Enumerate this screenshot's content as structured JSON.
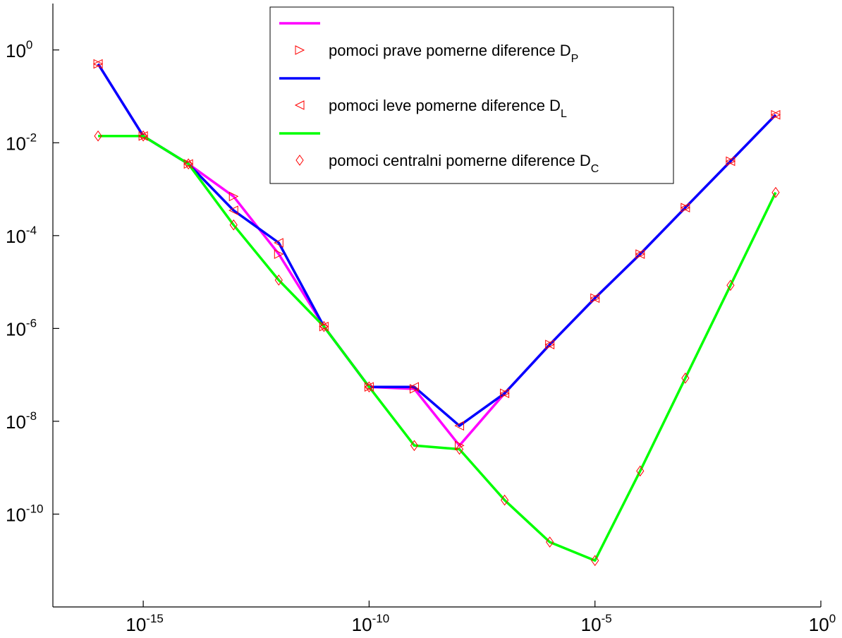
{
  "chart_data": {
    "type": "line",
    "x_scale": "log",
    "y_scale": "log",
    "xlim": [
      1e-17,
      1
    ],
    "ylim": [
      1e-12,
      10
    ],
    "grid": false,
    "legend_placement": "top-center",
    "x_ticks": [
      {
        "value": 1e-15,
        "base": "10",
        "exp": "-15"
      },
      {
        "value": 1e-10,
        "base": "10",
        "exp": "-10"
      },
      {
        "value": 1e-05,
        "base": "10",
        "exp": "-5"
      },
      {
        "value": 1,
        "base": "10",
        "exp": "0"
      }
    ],
    "y_ticks": [
      {
        "value": 1,
        "base": "10",
        "exp": "0"
      },
      {
        "value": 0.01,
        "base": "10",
        "exp": "-2"
      },
      {
        "value": 0.0001,
        "base": "10",
        "exp": "-4"
      },
      {
        "value": 1e-06,
        "base": "10",
        "exp": "-6"
      },
      {
        "value": 1e-08,
        "base": "10",
        "exp": "-8"
      },
      {
        "value": 1e-10,
        "base": "10",
        "exp": "-10"
      }
    ],
    "x": [
      1e-16,
      1e-15,
      1e-14,
      1e-13,
      1e-12,
      1e-11,
      1e-10,
      1e-09,
      1e-08,
      1e-07,
      1e-06,
      1e-05,
      0.0001,
      0.001,
      0.01,
      0.1
    ],
    "series": [
      {
        "legend_text": "pomoci prave pomerne diference D",
        "legend_sub": "P",
        "color": "#ff00ff",
        "marker": "triangle-right",
        "values": [
          0.5,
          0.014,
          0.0035,
          0.0007,
          4e-05,
          1.1e-06,
          5.5e-08,
          5e-08,
          3e-09,
          4e-08,
          4.5e-07,
          4.5e-06,
          4e-05,
          0.0004,
          0.004,
          0.04
        ]
      },
      {
        "legend_text": "pomoci leve pomerne diference D",
        "legend_sub": "L",
        "color": "#0000ff",
        "marker": "triangle-left",
        "values": [
          0.5,
          0.014,
          0.0035,
          0.00035,
          7e-05,
          1.1e-06,
          5.5e-08,
          5.5e-08,
          8e-09,
          4e-08,
          4.5e-07,
          4.5e-06,
          4e-05,
          0.0004,
          0.004,
          0.04
        ]
      },
      {
        "legend_text": "pomoci centralni pomerne diference D",
        "legend_sub": "C",
        "color": "#00ff00",
        "marker": "diamond",
        "values": [
          0.014,
          0.014,
          0.0035,
          0.00017,
          1.1e-05,
          1.1e-06,
          5.5e-08,
          3e-09,
          2.5e-09,
          2e-10,
          2.5e-11,
          1e-11,
          8.5e-10,
          8.5e-08,
          8.5e-06,
          0.00085
        ]
      }
    ]
  }
}
